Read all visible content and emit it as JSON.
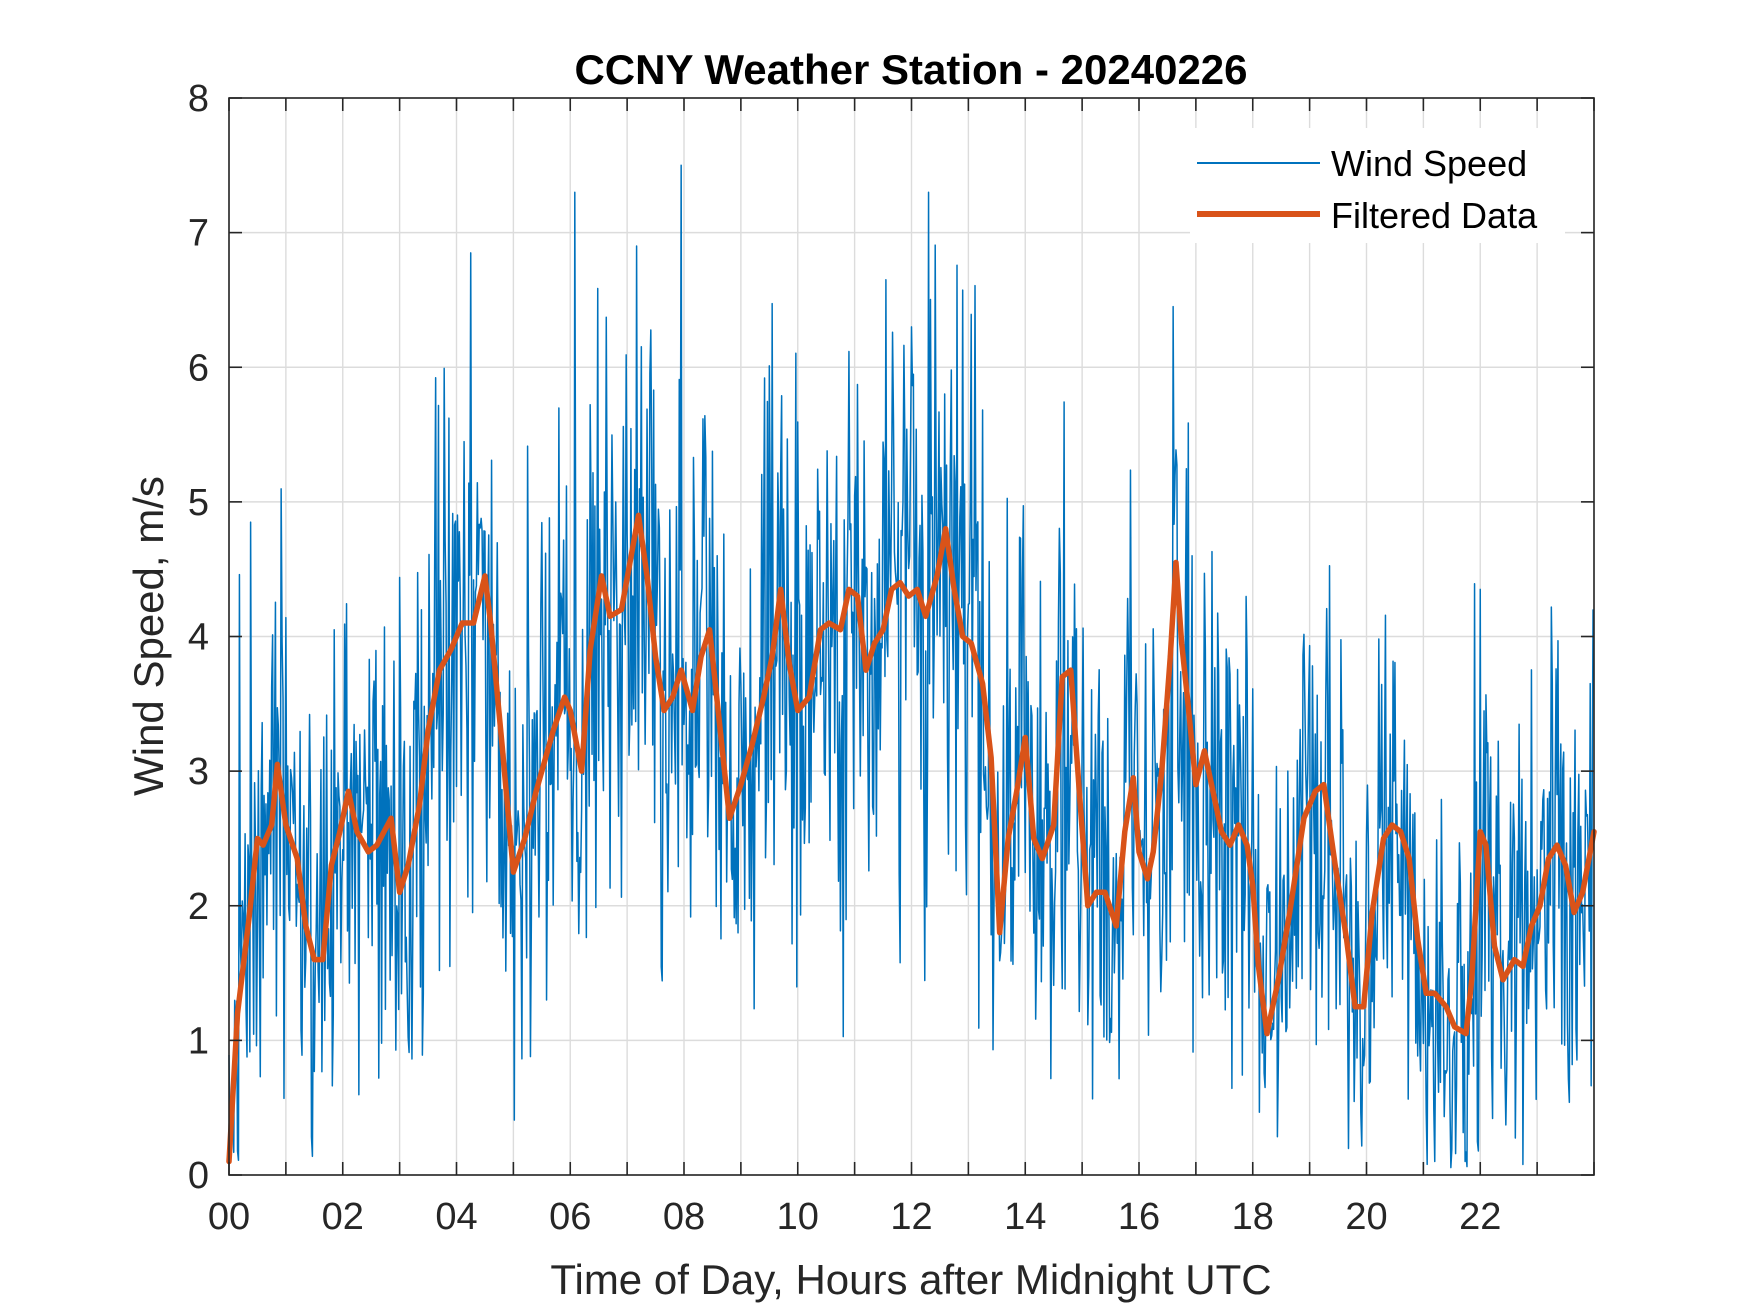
{
  "chart_data": {
    "type": "line",
    "title": "CCNY Weather Station - 20240226",
    "xlabel": "Time of Day, Hours after Midnight UTC",
    "ylabel": "Wind Speed, m/s",
    "xlim": [
      0,
      24
    ],
    "ylim": [
      0,
      8
    ],
    "grid": true,
    "legend_position": "top-right",
    "x_ticks": [
      0,
      2,
      4,
      6,
      8,
      10,
      12,
      14,
      16,
      18,
      20,
      22
    ],
    "x_tick_labels": [
      "00",
      "02",
      "04",
      "06",
      "08",
      "10",
      "12",
      "14",
      "16",
      "18",
      "20",
      "22"
    ],
    "x_grid": [
      0,
      1,
      2,
      3,
      4,
      5,
      6,
      7,
      8,
      9,
      10,
      11,
      12,
      13,
      14,
      15,
      16,
      17,
      18,
      19,
      20,
      21,
      22,
      23,
      24
    ],
    "y_ticks": [
      0,
      1,
      2,
      3,
      4,
      5,
      6,
      7,
      8
    ],
    "y_tick_labels": [
      "0",
      "1",
      "2",
      "3",
      "4",
      "5",
      "6",
      "7",
      "8"
    ],
    "series": [
      {
        "name": "Wind Speed",
        "color": "#0072BD",
        "style": "thin",
        "note": "1-minute samples; generated around the filtered trend with spikes at noted peaks",
        "peaks": [
          [
            0.38,
            4.85
          ],
          [
            4.25,
            6.85
          ],
          [
            6.08,
            7.3
          ],
          [
            7.95,
            7.5
          ],
          [
            11.55,
            6.65
          ],
          [
            12.0,
            6.3
          ],
          [
            16.6,
            6.45
          ],
          [
            21.2,
            0.1
          ],
          [
            22.0,
            4.35
          ]
        ]
      },
      {
        "name": "Filtered Data",
        "color": "#D95319",
        "style": "thick",
        "x": [
          0,
          0.15,
          0.35,
          0.5,
          0.6,
          0.75,
          0.85,
          1.0,
          1.2,
          1.35,
          1.5,
          1.65,
          1.8,
          1.95,
          2.1,
          2.25,
          2.45,
          2.6,
          2.85,
          3.0,
          3.15,
          3.35,
          3.5,
          3.7,
          3.9,
          4.1,
          4.3,
          4.5,
          4.6,
          4.8,
          5.0,
          5.2,
          5.4,
          5.7,
          5.9,
          6.0,
          6.2,
          6.35,
          6.55,
          6.7,
          6.9,
          7.05,
          7.2,
          7.35,
          7.5,
          7.65,
          7.8,
          7.95,
          8.15,
          8.3,
          8.45,
          8.65,
          8.8,
          9.0,
          9.2,
          9.4,
          9.55,
          9.7,
          9.85,
          10.0,
          10.2,
          10.4,
          10.55,
          10.75,
          10.9,
          11.05,
          11.2,
          11.35,
          11.5,
          11.65,
          11.8,
          11.95,
          12.1,
          12.25,
          12.45,
          12.6,
          12.75,
          12.9,
          13.05,
          13.25,
          13.4,
          13.55,
          13.7,
          13.85,
          14.0,
          14.15,
          14.3,
          14.5,
          14.65,
          14.8,
          14.95,
          15.1,
          15.25,
          15.4,
          15.6,
          15.75,
          15.9,
          16.0,
          16.15,
          16.25,
          16.4,
          16.55,
          16.65,
          16.75,
          16.85,
          17.0,
          17.15,
          17.3,
          17.45,
          17.6,
          17.75,
          17.9,
          18.0,
          18.1,
          18.25,
          18.45,
          18.65,
          18.9,
          19.1,
          19.25,
          19.45,
          19.65,
          19.8,
          19.95,
          20.1,
          20.3,
          20.45,
          20.6,
          20.75,
          20.9,
          21.05,
          21.2,
          21.4,
          21.55,
          21.75,
          21.85,
          22.0,
          22.1,
          22.25,
          22.4,
          22.6,
          22.75,
          22.9,
          23.05,
          23.2,
          23.35,
          23.5,
          23.65,
          23.8,
          24.0
        ],
        "values": [
          0.1,
          1.2,
          1.9,
          2.5,
          2.45,
          2.6,
          3.05,
          2.6,
          2.35,
          1.85,
          1.6,
          1.6,
          2.3,
          2.55,
          2.85,
          2.55,
          2.4,
          2.45,
          2.65,
          2.1,
          2.3,
          2.75,
          3.3,
          3.75,
          3.9,
          4.1,
          4.1,
          4.45,
          4.1,
          3.2,
          2.25,
          2.5,
          2.85,
          3.3,
          3.55,
          3.45,
          3.0,
          3.9,
          4.45,
          4.15,
          4.2,
          4.55,
          4.9,
          4.45,
          3.85,
          3.45,
          3.55,
          3.75,
          3.45,
          3.85,
          4.05,
          3.25,
          2.65,
          2.9,
          3.2,
          3.55,
          3.85,
          4.35,
          3.8,
          3.45,
          3.55,
          4.05,
          4.1,
          4.05,
          4.35,
          4.3,
          3.75,
          3.95,
          4.05,
          4.35,
          4.4,
          4.3,
          4.35,
          4.15,
          4.45,
          4.8,
          4.35,
          4.0,
          3.95,
          3.65,
          3.1,
          1.8,
          2.5,
          2.85,
          3.25,
          2.5,
          2.35,
          2.6,
          3.7,
          3.75,
          2.85,
          2.0,
          2.1,
          2.1,
          1.85,
          2.55,
          2.95,
          2.4,
          2.2,
          2.4,
          3.0,
          3.85,
          4.55,
          3.95,
          3.55,
          2.9,
          3.15,
          2.85,
          2.55,
          2.45,
          2.6,
          2.45,
          2.15,
          1.55,
          1.05,
          1.45,
          1.95,
          2.65,
          2.85,
          2.9,
          2.3,
          1.75,
          1.25,
          1.25,
          1.95,
          2.5,
          2.6,
          2.55,
          2.35,
          1.75,
          1.35,
          1.35,
          1.25,
          1.1,
          1.05,
          1.45,
          2.55,
          2.45,
          1.7,
          1.45,
          1.6,
          1.55,
          1.85,
          2.0,
          2.35,
          2.45,
          2.3,
          1.95,
          2.1,
          2.55
        ]
      }
    ]
  }
}
